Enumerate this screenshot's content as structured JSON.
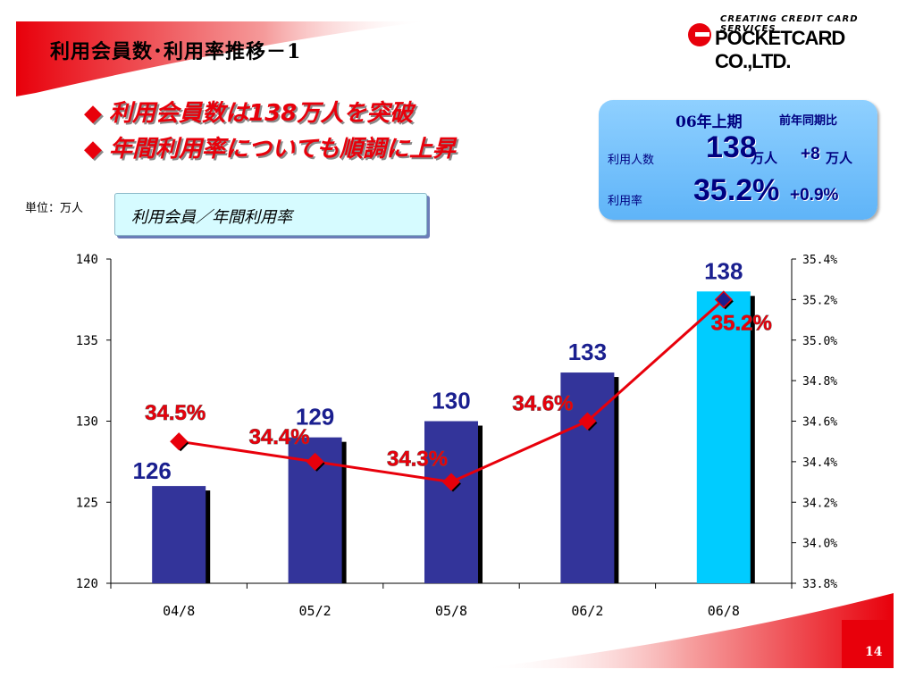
{
  "slide": {
    "title": "利用会員数･利用率推移－1",
    "page_number": "14",
    "unit_label": "単位：万人",
    "legend_label": "利用会員／年間利用率"
  },
  "logo": {
    "tagline": "CREATING CREDIT CARD SERVICES",
    "name": "POCKETCARD CO.,LTD."
  },
  "headlines": [
    {
      "bullet": "◆",
      "text": "利用会員数は138万人を突破"
    },
    {
      "bullet": "◆",
      "text": "年間利用率についても順調に上昇"
    }
  ],
  "summary": {
    "period": "06年上期",
    "compare_label": "前年同期比",
    "users_label": "利用人数",
    "users_value": "138",
    "users_unit": "万人",
    "users_change": "+8",
    "users_change_unit": "万人",
    "rate_label": "利用率",
    "rate_value": "35.2%",
    "rate_change": "+0.9%"
  },
  "colors": {
    "accent_red": "#e8000b",
    "bar_navy": "#33349a",
    "bar_highlight": "#00ccff",
    "bar_label_navy": "#1a1f8f",
    "summary_text": "#000080"
  },
  "chart_data": {
    "type": "bar",
    "categories": [
      "04/8",
      "05/2",
      "05/8",
      "06/2",
      "06/8"
    ],
    "series": [
      {
        "values": [
          126,
          129,
          130,
          133,
          138
        ],
        "labels": [
          "126",
          "129",
          "130",
          "133",
          "138"
        ],
        "axis": "left"
      },
      {
        "type": "line",
        "values": [
          34.5,
          34.4,
          34.3,
          34.6,
          35.2
        ],
        "labels": [
          "34.5%",
          "34.4%",
          "34.3%",
          "34.6%",
          "35.2%"
        ],
        "axis": "right"
      }
    ],
    "ylim": [
      120,
      140
    ],
    "yticks": [
      "120",
      "125",
      "130",
      "135",
      "140"
    ],
    "y2lim": [
      33.8,
      35.4
    ],
    "y2ticks": [
      "33.8%",
      "34.0%",
      "34.2%",
      "34.4%",
      "34.6%",
      "34.8%",
      "35.0%",
      "35.2%",
      "35.4%"
    ],
    "highlight_index": 4,
    "grid": false
  }
}
